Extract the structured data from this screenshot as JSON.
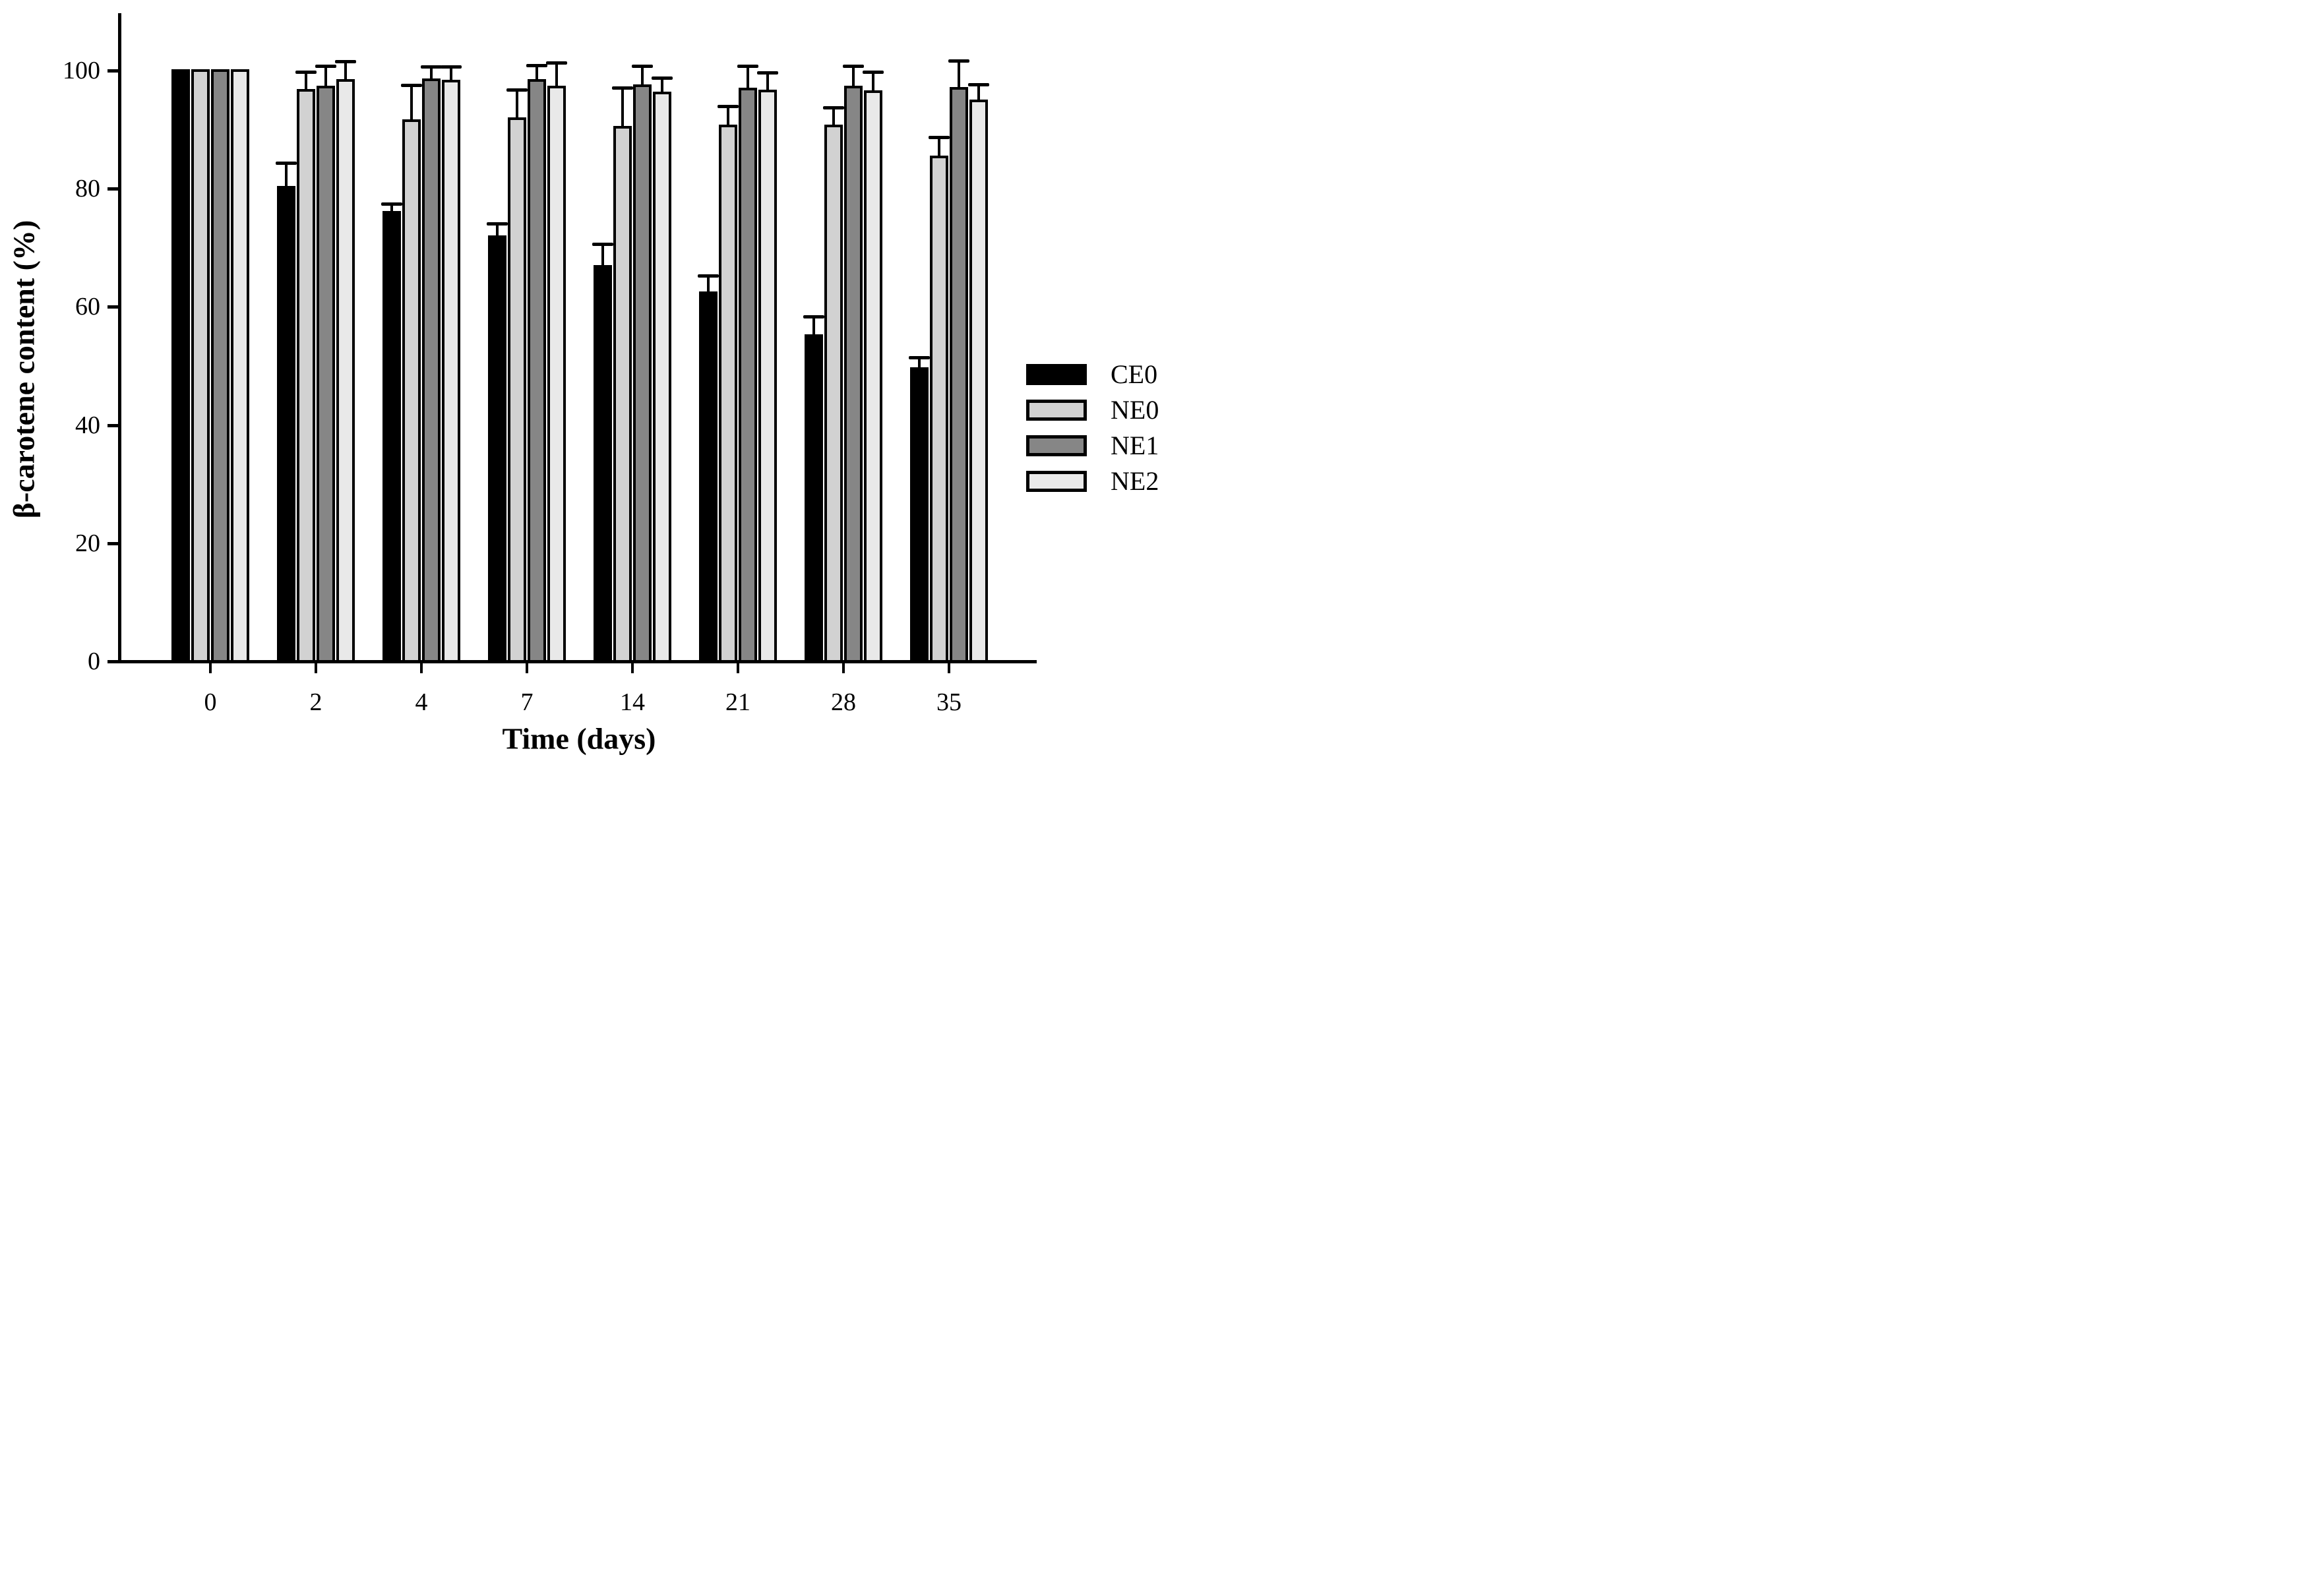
{
  "figure": {
    "background": "#ffffff",
    "axis_color": "#000000"
  },
  "chart_data": {
    "type": "bar",
    "title": "",
    "xlabel": "Time (days)",
    "ylabel": "β-carotene content (%)",
    "categories": [
      "0",
      "2",
      "4",
      "7",
      "14",
      "21",
      "28",
      "35"
    ],
    "y_ticks": [
      0,
      20,
      40,
      60,
      80,
      100
    ],
    "ylim": [
      0,
      110
    ],
    "grid": false,
    "legend_position": "right",
    "error_bars": "upper-only",
    "series": [
      {
        "name": "CE0",
        "color": "#000000",
        "values": [
          100,
          80.3,
          76.0,
          71.9,
          66.8,
          62.4,
          55.1,
          49.5
        ],
        "errors": [
          0,
          3.8,
          1.2,
          2.0,
          3.6,
          2.7,
          3.1,
          1.7
        ]
      },
      {
        "name": "NE0",
        "color": "#d2d2d2",
        "values": [
          100,
          96.7,
          91.5,
          91.8,
          90.4,
          90.6,
          90.6,
          85.4
        ],
        "errors": [
          0,
          2.8,
          5.8,
          4.7,
          6.5,
          3.2,
          2.9,
          3.1
        ]
      },
      {
        "name": "NE1",
        "color": "#868686",
        "values": [
          100,
          97.2,
          98.4,
          98.3,
          97.4,
          96.9,
          97.2,
          97.0
        ],
        "errors": [
          0,
          3.4,
          2.0,
          2.4,
          3.2,
          3.7,
          3.4,
          4.4
        ]
      },
      {
        "name": "NE2",
        "color": "#e9e9e9",
        "values": [
          100,
          98.3,
          98.2,
          97.2,
          96.2,
          96.5,
          96.4,
          94.9
        ],
        "errors": [
          0,
          3.0,
          2.2,
          3.9,
          2.3,
          2.9,
          3.2,
          2.5
        ]
      }
    ]
  }
}
